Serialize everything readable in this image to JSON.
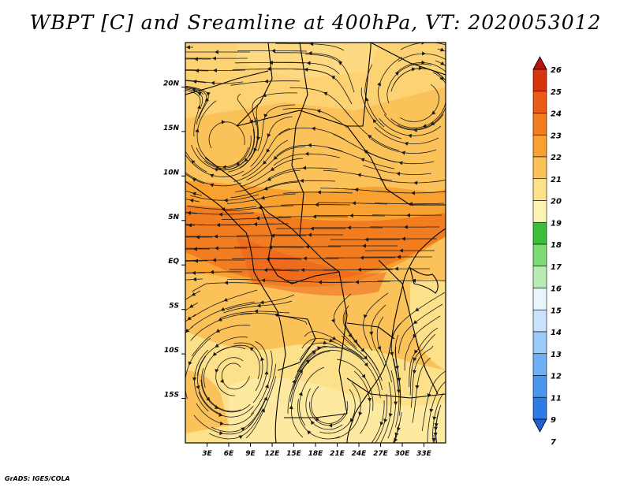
{
  "title": "WBPT [C] and Sreamline at 400hPa, VT: 2020053012",
  "credit": "GrADS: IGES/COLA",
  "map": {
    "lon_range": [
      0,
      36
    ],
    "lat_range": [
      -20,
      25
    ],
    "x_ticks": [
      "3E",
      "6E",
      "9E",
      "12E",
      "15E",
      "18E",
      "21E",
      "24E",
      "27E",
      "30E",
      "33E"
    ],
    "x_tick_values": [
      3,
      6,
      9,
      12,
      15,
      18,
      21,
      24,
      27,
      30,
      33
    ],
    "y_ticks": [
      "20N",
      "15N",
      "10N",
      "5N",
      "EQ",
      "5S",
      "10S",
      "15S"
    ],
    "y_tick_values": [
      20,
      15,
      10,
      5,
      0,
      -5,
      -10,
      -15
    ]
  },
  "colorbar": {
    "labels": [
      "7",
      "9",
      "11",
      "12",
      "13",
      "14",
      "15",
      "16",
      "17",
      "18",
      "19",
      "20",
      "21",
      "22",
      "23",
      "24",
      "25",
      "26"
    ],
    "colors": [
      "#1f5fd8",
      "#2f7be6",
      "#4a96ef",
      "#6eb0f4",
      "#9ccbf7",
      "#c8e3fb",
      "#e8f5fc",
      "#b9ecb4",
      "#7ddb73",
      "#3bbf3b",
      "#fdf3b3",
      "#fde08a",
      "#fcc25a",
      "#f8a030",
      "#f27d20",
      "#e95b17",
      "#d73510",
      "#b9140d"
    ]
  }
}
